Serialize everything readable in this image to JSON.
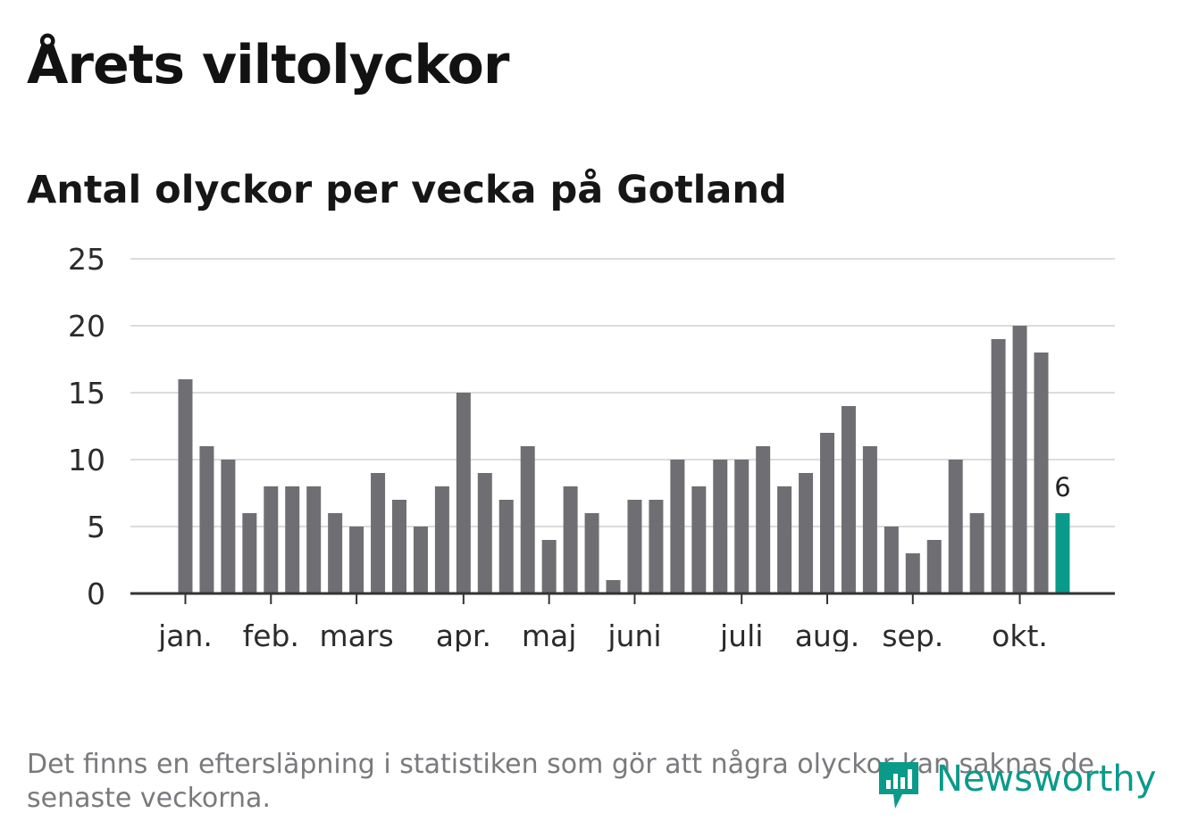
{
  "title": "Årets viltolyckor",
  "footnote": "Det finns en eftersläpning i statistiken som gör att några olyckor kan saknas de senaste veckorna.",
  "logo": {
    "text": "Newsworthy",
    "icon": "newsworthy-logo-icon"
  },
  "colors": {
    "bar": "#6f6e73",
    "highlight": "#0a9a8a",
    "grid": "#dcdcdc",
    "axis": "#333333",
    "tick_text": "#2b2b2b"
  },
  "chart_data": {
    "type": "bar",
    "title": "Antal olyckor per vecka på Gotland",
    "xlabel": "",
    "ylabel": "",
    "ylim": [
      0,
      25
    ],
    "yticks": [
      0,
      5,
      10,
      15,
      20,
      25
    ],
    "values": [
      16,
      11,
      10,
      6,
      8,
      8,
      8,
      6,
      5,
      9,
      7,
      5,
      8,
      15,
      9,
      7,
      11,
      4,
      8,
      6,
      1,
      7,
      7,
      10,
      8,
      10,
      10,
      11,
      8,
      9,
      12,
      14,
      11,
      5,
      3,
      4,
      10,
      6,
      19,
      20,
      18,
      6
    ],
    "month_labels": [
      {
        "label": "jan.",
        "bar_index": 0
      },
      {
        "label": "feb.",
        "bar_index": 4
      },
      {
        "label": "mars",
        "bar_index": 8
      },
      {
        "label": "apr.",
        "bar_index": 13
      },
      {
        "label": "maj",
        "bar_index": 17
      },
      {
        "label": "juni",
        "bar_index": 21
      },
      {
        "label": "juli",
        "bar_index": 26
      },
      {
        "label": "aug.",
        "bar_index": 30
      },
      {
        "label": "sep.",
        "bar_index": 34
      },
      {
        "label": "okt.",
        "bar_index": 39
      }
    ],
    "highlight_index": 41,
    "highlight_label": "6",
    "grid": true
  }
}
